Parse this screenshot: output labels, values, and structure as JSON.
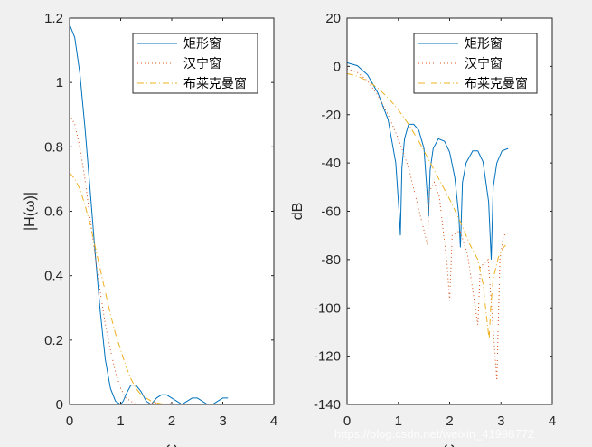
{
  "chart_data": [
    {
      "type": "line",
      "xlabel": "ω",
      "ylabel": "|H(ω)|",
      "xlim": [
        0,
        4
      ],
      "ylim": [
        0,
        1.2
      ],
      "x_ticks": [
        "0",
        "1",
        "2",
        "3",
        "4"
      ],
      "y_ticks": [
        "0",
        "0.2",
        "0.4",
        "0.6",
        "0.8",
        "1",
        "1.2"
      ],
      "legend_position": "top-right",
      "series": [
        {
          "name": "矩形窗",
          "color": "#0072BD",
          "style": "solid",
          "x": [
            0,
            0.1,
            0.2,
            0.3,
            0.4,
            0.5,
            0.6,
            0.7,
            0.8,
            0.9,
            1.0,
            1.05,
            1.1,
            1.2,
            1.3,
            1.4,
            1.5,
            1.6,
            1.7,
            1.8,
            1.9,
            2.0,
            2.1,
            2.2,
            2.3,
            2.4,
            2.5,
            2.6,
            2.7,
            2.8,
            2.9,
            3.0,
            3.1
          ],
          "y": [
            1.18,
            1.14,
            1.03,
            0.86,
            0.67,
            0.47,
            0.29,
            0.14,
            0.05,
            0.01,
            0.0,
            0.01,
            0.03,
            0.06,
            0.06,
            0.04,
            0.01,
            0.0,
            0.02,
            0.03,
            0.03,
            0.02,
            0.01,
            0.0,
            0.01,
            0.02,
            0.02,
            0.01,
            0.0,
            0.0,
            0.01,
            0.02,
            0.02
          ]
        },
        {
          "name": "汉宁窗",
          "color": "#D95319",
          "style": "dotted",
          "x": [
            0,
            0.1,
            0.2,
            0.3,
            0.4,
            0.5,
            0.6,
            0.7,
            0.8,
            0.9,
            1.0,
            1.1,
            1.2,
            1.3,
            1.4,
            1.5,
            1.6,
            1.7,
            1.8,
            2.0,
            2.2,
            2.4,
            2.6,
            2.8,
            3.0,
            3.1
          ],
          "y": [
            0.9,
            0.87,
            0.8,
            0.7,
            0.58,
            0.46,
            0.35,
            0.25,
            0.17,
            0.1,
            0.05,
            0.02,
            0.01,
            0.0,
            0.0,
            0.0,
            0.005,
            0.005,
            0.0,
            0.003,
            0.0,
            0.001,
            0.0,
            0.001,
            0.0,
            0.0
          ]
        },
        {
          "name": "布莱克曼窗",
          "color": "#EDB120",
          "style": "dashdot",
          "x": [
            0,
            0.1,
            0.2,
            0.3,
            0.4,
            0.5,
            0.6,
            0.7,
            0.8,
            0.9,
            1.0,
            1.1,
            1.2,
            1.3,
            1.4,
            1.5,
            1.6,
            1.7,
            1.8,
            2.0,
            2.2,
            2.4,
            2.6,
            2.8,
            3.0,
            3.1
          ],
          "y": [
            0.72,
            0.7,
            0.67,
            0.62,
            0.56,
            0.49,
            0.42,
            0.35,
            0.28,
            0.22,
            0.17,
            0.12,
            0.08,
            0.05,
            0.03,
            0.02,
            0.01,
            0.005,
            0.002,
            0.0,
            0.001,
            0.0,
            0.0,
            0.0,
            0.0,
            0.0
          ]
        }
      ]
    },
    {
      "type": "line",
      "xlabel": "ω",
      "ylabel": "dB",
      "xlim": [
        0,
        4
      ],
      "ylim": [
        -140,
        20
      ],
      "x_ticks": [
        "0",
        "1",
        "2",
        "3",
        "4"
      ],
      "y_ticks": [
        "-140",
        "-120",
        "-100",
        "-80",
        "-60",
        "-40",
        "-20",
        "0",
        "20"
      ],
      "legend_position": "top-right",
      "series": [
        {
          "name": "矩形窗",
          "color": "#0072BD",
          "style": "solid",
          "x": [
            0,
            0.2,
            0.4,
            0.6,
            0.8,
            0.95,
            1.02,
            1.04,
            1.07,
            1.12,
            1.2,
            1.3,
            1.4,
            1.5,
            1.56,
            1.59,
            1.62,
            1.68,
            1.78,
            1.9,
            2.0,
            2.1,
            2.18,
            2.21,
            2.25,
            2.32,
            2.45,
            2.55,
            2.65,
            2.76,
            2.81,
            2.85,
            2.92,
            3.02,
            3.14
          ],
          "x_note": "",
          "y": [
            1.5,
            0.3,
            -3.5,
            -11,
            -22,
            -40,
            -62,
            -70,
            -42,
            -30,
            -24,
            -24,
            -26.5,
            -34,
            -52,
            -62,
            -43,
            -34,
            -30,
            -31,
            -35.5,
            -46,
            -62,
            -75,
            -48,
            -40,
            -35,
            -35,
            -39.5,
            -56,
            -80,
            -50,
            -40,
            -35,
            -34
          ]
        },
        {
          "name": "汉宁窗",
          "color": "#D95319",
          "style": "dotted",
          "x": [
            0,
            0.2,
            0.4,
            0.6,
            0.8,
            1.0,
            1.2,
            1.35,
            1.5,
            1.57,
            1.6,
            1.7,
            1.8,
            1.95,
            2.0,
            2.05,
            2.2,
            2.35,
            2.5,
            2.55,
            2.6,
            2.75,
            2.87,
            2.92,
            2.98,
            3.05,
            3.14
          ],
          "y": [
            -1,
            -2.5,
            -6,
            -12,
            -20,
            -30,
            -42,
            -55,
            -68,
            -74,
            -52,
            -48,
            -54,
            -82,
            -97,
            -70,
            -68,
            -78,
            -100,
            -107,
            -83,
            -80,
            -115,
            -130,
            -80,
            -70,
            -69
          ]
        },
        {
          "name": "布莱克曼窗",
          "color": "#EDB120",
          "style": "dashdot",
          "x": [
            0,
            0.2,
            0.4,
            0.6,
            0.8,
            1.0,
            1.2,
            1.4,
            1.6,
            1.8,
            2.0,
            2.2,
            2.4,
            2.55,
            2.65,
            2.72,
            2.77,
            2.8,
            2.85,
            2.95,
            3.05,
            3.14
          ],
          "y": [
            -3,
            -4,
            -6,
            -9,
            -13,
            -18,
            -24,
            -31,
            -39,
            -47,
            -55,
            -64,
            -74,
            -80,
            -90,
            -104,
            -113,
            -100,
            -88,
            -79,
            -75,
            -73
          ]
        }
      ]
    }
  ],
  "legend": [
    "矩形窗",
    "汉宁窗",
    "布莱克曼窗"
  ],
  "watermark": "https://blog.csdn.net/weixin_41998772"
}
